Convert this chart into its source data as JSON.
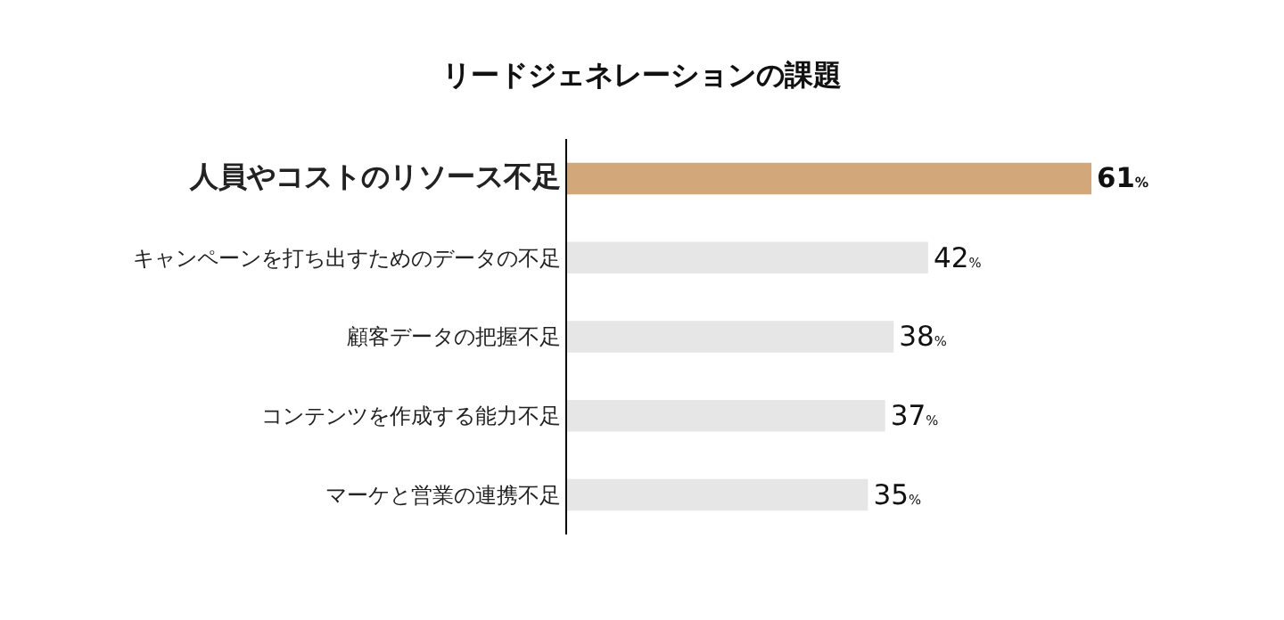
{
  "chart_data": {
    "type": "bar",
    "orientation": "horizontal",
    "title": "リードジェネレーションの課題",
    "categories": [
      "人員やコストのリソース不足",
      "キャンペーンを打ち出すためのデータの不足",
      "顧客データの把握不足",
      "コンテンツを作成する能力不足",
      "マーケと営業の連携不足"
    ],
    "values": [
      61,
      42,
      38,
      37,
      35
    ],
    "colors": [
      "#d2a87a",
      "#e6e6e6",
      "#e6e6e6",
      "#e6e6e6",
      "#e6e6e6"
    ],
    "value_labels": [
      "61%",
      "42%",
      "38%",
      "37%",
      "35%"
    ]
  }
}
